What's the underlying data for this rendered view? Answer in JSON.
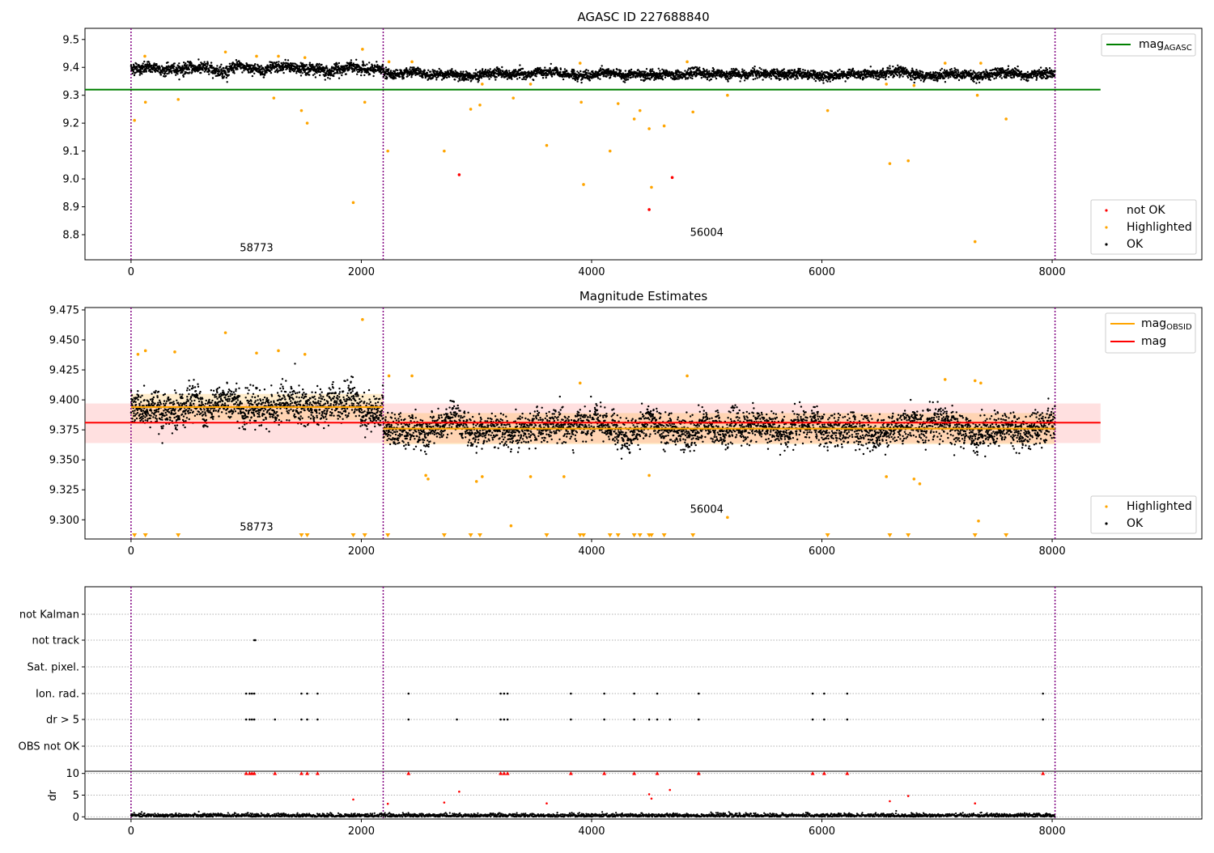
{
  "chart_data": [
    {
      "type": "scatter",
      "title": "AGASC ID 227688840",
      "xlim": [
        -400,
        9300
      ],
      "ylim": [
        8.71,
        9.54
      ],
      "xticks": [
        0,
        2000,
        4000,
        6000,
        8000
      ],
      "yticks": [
        8.8,
        8.9,
        9.0,
        9.1,
        9.2,
        9.3,
        9.4,
        9.5
      ],
      "obs_boundaries": [
        0,
        2190,
        8025
      ],
      "obs_labels": [
        {
          "x": 1090,
          "y": 8.74,
          "text": "58773"
        },
        {
          "x": 5000,
          "y": 8.795,
          "text": "56004"
        }
      ],
      "reference_lines": [
        {
          "name": "mag_AGASC",
          "y": 9.32,
          "x_range": [
            -400,
            8420
          ],
          "color": "#008000"
        }
      ],
      "series": [
        {
          "name": "not OK",
          "color": "#ff0000",
          "points": [
            [
              2850,
              9.015
            ],
            [
              4700,
              9.005
            ],
            [
              4500,
              8.89
            ]
          ]
        },
        {
          "name": "Highlighted",
          "color": "#ffa500",
          "points": [
            [
              30,
              9.21
            ],
            [
              125,
              9.275
            ],
            [
              410,
              9.285
            ],
            [
              1240,
              9.29
            ],
            [
              1480,
              9.245
            ],
            [
              1530,
              9.2
            ],
            [
              1930,
              8.915
            ],
            [
              2030,
              9.275
            ],
            [
              2230,
              9.1
            ],
            [
              2720,
              9.1
            ],
            [
              2950,
              9.25
            ],
            [
              3030,
              9.265
            ],
            [
              3320,
              9.29
            ],
            [
              3610,
              9.12
            ],
            [
              3910,
              9.275
            ],
            [
              3930,
              8.98
            ],
            [
              4160,
              9.1
            ],
            [
              4230,
              9.27
            ],
            [
              4370,
              9.215
            ],
            [
              4420,
              9.245
            ],
            [
              4500,
              9.18
            ],
            [
              4520,
              8.97
            ],
            [
              4630,
              9.19
            ],
            [
              4880,
              9.24
            ],
            [
              5180,
              9.3
            ],
            [
              6050,
              9.245
            ],
            [
              6590,
              9.055
            ],
            [
              6750,
              9.065
            ],
            [
              7330,
              8.775
            ],
            [
              7350,
              9.3
            ],
            [
              7600,
              9.215
            ],
            [
              120,
              9.44
            ],
            [
              820,
              9.455
            ],
            [
              1090,
              9.44
            ],
            [
              1280,
              9.44
            ],
            [
              1510,
              9.435
            ],
            [
              2010,
              9.465
            ],
            [
              2240,
              9.42
            ],
            [
              2440,
              9.42
            ],
            [
              3050,
              9.34
            ],
            [
              3470,
              9.34
            ],
            [
              3900,
              9.415
            ],
            [
              4830,
              9.42
            ],
            [
              6560,
              9.34
            ],
            [
              6800,
              9.335
            ],
            [
              7070,
              9.415
            ],
            [
              7380,
              9.415
            ]
          ]
        },
        {
          "name": "OK",
          "color": "#000000",
          "segments": [
            {
              "x0": 0,
              "x1": 2190,
              "mean": 9.395,
              "spread": 0.018
            },
            {
              "x0": 2190,
              "x1": 8025,
              "mean": 9.375,
              "spread": 0.015
            }
          ]
        }
      ],
      "legend": {
        "position": "top-right and bottom-right",
        "entries_top": [
          "mag_AGASC"
        ],
        "entries_bottom": [
          "not OK",
          "Highlighted",
          "OK"
        ]
      }
    },
    {
      "type": "scatter",
      "title": "Magnitude Estimates",
      "xlim": [
        -400,
        9300
      ],
      "ylim": [
        9.284,
        9.477
      ],
      "xticks": [
        0,
        2000,
        4000,
        6000,
        8000
      ],
      "yticks": [
        9.3,
        9.325,
        9.35,
        9.375,
        9.4,
        9.425,
        9.45,
        9.475
      ],
      "obs_boundaries": [
        0,
        2190,
        8025
      ],
      "obs_labels": [
        {
          "x": 1090,
          "y": 9.291,
          "text": "58773"
        },
        {
          "x": 5000,
          "y": 9.306,
          "text": "56004"
        }
      ],
      "reference_lines": [
        {
          "name": "mag",
          "y": 9.381,
          "x_range": [
            -400,
            8420
          ],
          "color": "#ff0000",
          "band": [
            9.364,
            9.397
          ]
        },
        {
          "name": "mag_OBSID",
          "y": 9.394,
          "x_range": [
            0,
            2190
          ],
          "color": "#ffa500",
          "band": [
            9.383,
            9.405
          ]
        },
        {
          "name": "mag_OBSID",
          "y": 9.376,
          "x_range": [
            2190,
            8025
          ],
          "color": "#ffa500",
          "band": [
            9.363,
            9.389
          ]
        }
      ],
      "series": [
        {
          "name": "Highlighted",
          "color": "#ffa500",
          "points": [
            [
              60,
              9.438
            ],
            [
              125,
              9.441
            ],
            [
              380,
              9.44
            ],
            [
              820,
              9.456
            ],
            [
              1090,
              9.439
            ],
            [
              1280,
              9.441
            ],
            [
              1510,
              9.438
            ],
            [
              2010,
              9.467
            ],
            [
              2240,
              9.42
            ],
            [
              2440,
              9.42
            ],
            [
              2560,
              9.337
            ],
            [
              2580,
              9.334
            ],
            [
              3000,
              9.332
            ],
            [
              3050,
              9.336
            ],
            [
              3300,
              9.295
            ],
            [
              3470,
              9.336
            ],
            [
              3760,
              9.336
            ],
            [
              3900,
              9.414
            ],
            [
              4500,
              9.337
            ],
            [
              4830,
              9.42
            ],
            [
              5180,
              9.302
            ],
            [
              6560,
              9.336
            ],
            [
              6800,
              9.334
            ],
            [
              6850,
              9.33
            ],
            [
              7070,
              9.417
            ],
            [
              7330,
              9.416
            ],
            [
              7380,
              9.414
            ],
            [
              7360,
              9.299
            ]
          ]
        },
        {
          "name": "Highlighted (below range)",
          "color": "#ffa500",
          "markers_x": [
            30,
            125,
            410,
            1480,
            1530,
            1930,
            2030,
            2230,
            2720,
            2950,
            3030,
            3610,
            3900,
            3930,
            4160,
            4230,
            4370,
            4420,
            4500,
            4520,
            4630,
            4880,
            6050,
            6590,
            6750,
            7330,
            7600
          ]
        },
        {
          "name": "OK",
          "color": "#000000",
          "segments": [
            {
              "x0": 0,
              "x1": 2190,
              "mean": 9.394,
              "spread": 0.013
            },
            {
              "x0": 2190,
              "x1": 8025,
              "mean": 9.376,
              "spread": 0.012
            }
          ]
        }
      ],
      "legend": {
        "position": "top-right and bottom-right",
        "entries_top": [
          "mag_OBSID",
          "mag"
        ],
        "entries_bottom": [
          "Highlighted",
          "OK"
        ]
      }
    },
    {
      "type": "scatter",
      "title": "",
      "xlim": [
        -400,
        9300
      ],
      "xticks": [
        0,
        2000,
        4000,
        6000,
        8000
      ],
      "obs_boundaries": [
        0,
        2190,
        8025
      ],
      "flag_rows": [
        "not Kalman",
        "not track",
        "Sat. pixel.",
        "Ion. rad.",
        "dr > 5",
        "OBS not OK"
      ],
      "flags": {
        "not Kalman": [],
        "not track": [
          1070,
          1080
        ],
        "Sat. pixel.": [],
        "Ion. rad.": [
          1000,
          1030,
          1050,
          1070,
          1480,
          1530,
          1620,
          2410,
          3210,
          3240,
          3270,
          3820,
          4110,
          4370,
          4570,
          4930,
          5920,
          6020,
          6220,
          7920
        ],
        "dr > 5": [
          1000,
          1030,
          1050,
          1070,
          1250,
          1480,
          1530,
          1620,
          2410,
          2830,
          3210,
          3240,
          3270,
          3820,
          4110,
          4370,
          4500,
          4570,
          4680,
          4930,
          5920,
          6020,
          6220,
          7920
        ],
        "OBS not OK": []
      },
      "dr_panel": {
        "ylabel": "dr",
        "ylim": [
          -0.5,
          10.5
        ],
        "yticks": [
          0,
          5,
          10
        ],
        "clipped_red_x": [
          1000,
          1030,
          1050,
          1070,
          1250,
          1480,
          1530,
          1620,
          2410,
          3210,
          3240,
          3270,
          3820,
          4110,
          4370,
          4570,
          4930,
          5920,
          6020,
          6220,
          7920
        ],
        "red_points": [
          [
            1930,
            4.0
          ],
          [
            2230,
            3.0
          ],
          [
            2720,
            3.3
          ],
          [
            2850,
            5.8
          ],
          [
            3610,
            3.1
          ],
          [
            4500,
            5.2
          ],
          [
            4520,
            4.2
          ],
          [
            4680,
            6.2
          ],
          [
            6590,
            3.6
          ],
          [
            6750,
            4.8
          ],
          [
            7330,
            3.1
          ]
        ],
        "ok_baseline": 0.3
      }
    }
  ]
}
